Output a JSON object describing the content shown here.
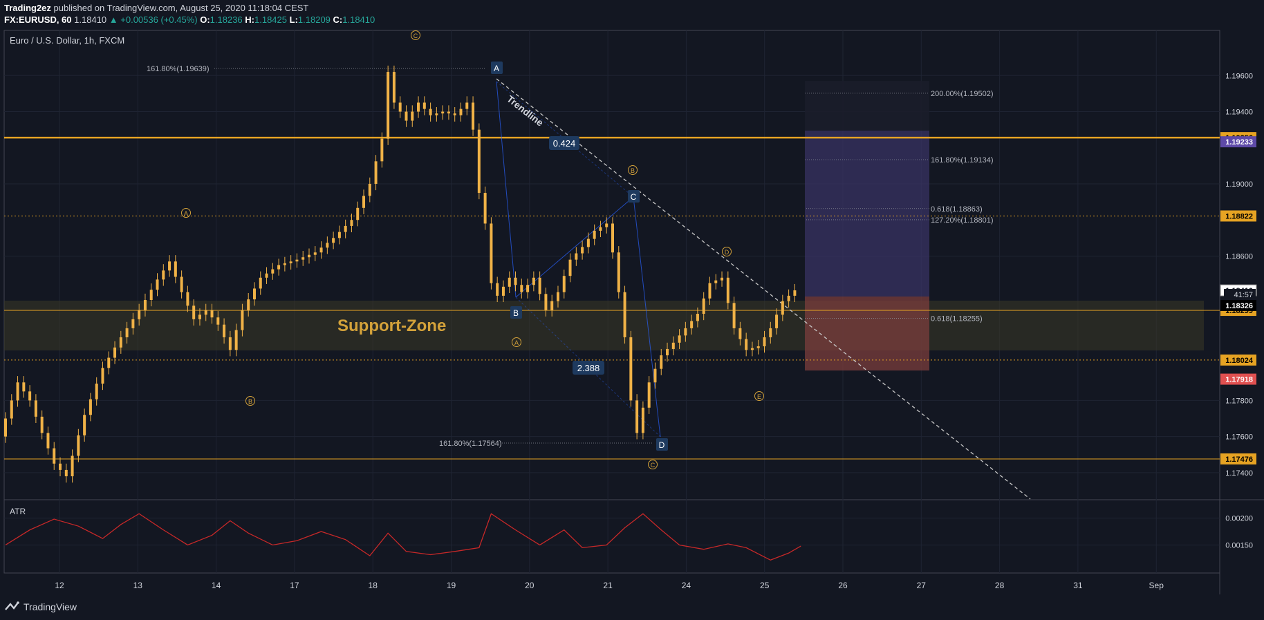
{
  "header": {
    "publisher": "Trading2ez",
    "published_text": " published on TradingView.com, August 25, 2020 11:18:04 CEST",
    "symbol": "FX:EURUSD, 60",
    "last": "1.18410",
    "change": "▲ +0.00536 (+0.45%)",
    "o_label": "O:",
    "o": "1.18236",
    "h_label": "H:",
    "h": "1.18425",
    "l_label": "L:",
    "l": "1.18209",
    "c_label": "C:",
    "c": "1.18410"
  },
  "chart_title": "Euro / U.S. Dollar, 1h, FXCM",
  "indicator_label": "ATR",
  "footer": {
    "brand": "TradingView"
  },
  "colors": {
    "background": "#131722",
    "candle": "#f0b247",
    "horizontal_line": "#e6a323",
    "trendline": "#c8c8c8",
    "pattern_line": "#2962ff",
    "target_zone": "#5b4a8c",
    "stop_zone": "#c0504d",
    "support_zone": "#4a4428",
    "atr": "#c62828",
    "label_box": "#1e3a5f"
  },
  "chart_data": {
    "type": "line",
    "x_ticks": [
      "12",
      "13",
      "14",
      "17",
      "18",
      "19",
      "20",
      "21",
      "24",
      "25",
      "26",
      "27",
      "28",
      "31",
      "Sep"
    ],
    "y_ticks": [
      "1.19600",
      "1.19400",
      "1.19000",
      "1.18600",
      "1.17800",
      "1.17600",
      "1.17400"
    ],
    "ylim": [
      1.1725,
      1.1985
    ],
    "price_path": [
      [
        0,
        1.176
      ],
      [
        3,
        1.179
      ],
      [
        5,
        1.178
      ],
      [
        7,
        1.1762
      ],
      [
        9,
        1.1745
      ],
      [
        11,
        1.1738
      ],
      [
        14,
        1.1772
      ],
      [
        17,
        1.1798
      ],
      [
        20,
        1.1815
      ],
      [
        23,
        1.183
      ],
      [
        26,
        1.1847
      ],
      [
        28,
        1.1857
      ],
      [
        30,
        1.184
      ],
      [
        32,
        1.1825
      ],
      [
        34,
        1.183
      ],
      [
        36,
        1.1822
      ],
      [
        38,
        1.1808
      ],
      [
        40,
        1.183
      ],
      [
        43,
        1.1848
      ],
      [
        46,
        1.1855
      ],
      [
        49,
        1.1858
      ],
      [
        52,
        1.1862
      ],
      [
        55,
        1.187
      ],
      [
        58,
        1.188
      ],
      [
        61,
        1.19
      ],
      [
        63,
        1.1925
      ],
      [
        64,
        1.1962
      ],
      [
        65,
        1.1945
      ],
      [
        67,
        1.1935
      ],
      [
        69,
        1.1945
      ],
      [
        71,
        1.1938
      ],
      [
        73,
        1.194
      ],
      [
        75,
        1.1938
      ],
      [
        77,
        1.1945
      ],
      [
        78,
        1.193
      ],
      [
        79,
        1.1895
      ],
      [
        80,
        1.1878
      ],
      [
        81,
        1.1845
      ],
      [
        82,
        1.1838
      ],
      [
        84,
        1.1848
      ],
      [
        86,
        1.184
      ],
      [
        88,
        1.1848
      ],
      [
        90,
        1.183
      ],
      [
        92,
        1.184
      ],
      [
        94,
        1.1858
      ],
      [
        96,
        1.1865
      ],
      [
        98,
        1.1874
      ],
      [
        100,
        1.1878
      ],
      [
        101,
        1.1862
      ],
      [
        102,
        1.184
      ],
      [
        103,
        1.1815
      ],
      [
        104,
        1.178
      ],
      [
        105,
        1.1762
      ],
      [
        107,
        1.179
      ],
      [
        109,
        1.1805
      ],
      [
        111,
        1.1812
      ],
      [
        113,
        1.182
      ],
      [
        115,
        1.1828
      ],
      [
        117,
        1.1845
      ],
      [
        119,
        1.1848
      ],
      [
        121,
        1.182
      ],
      [
        123,
        1.1808
      ],
      [
        125,
        1.181
      ],
      [
        127,
        1.182
      ],
      [
        129,
        1.1835
      ],
      [
        131,
        1.1841
      ]
    ],
    "atr_ticks": [
      "0.00200",
      "0.00150"
    ],
    "atr_ylim": [
      0.00098,
      0.00225
    ],
    "atr_path": [
      [
        0,
        0.0015
      ],
      [
        4,
        0.00178
      ],
      [
        8,
        0.00198
      ],
      [
        12,
        0.00185
      ],
      [
        16,
        0.00162
      ],
      [
        19,
        0.00188
      ],
      [
        22,
        0.00208
      ],
      [
        26,
        0.00178
      ],
      [
        30,
        0.0015
      ],
      [
        34,
        0.00168
      ],
      [
        37,
        0.00195
      ],
      [
        40,
        0.00172
      ],
      [
        44,
        0.0015
      ],
      [
        48,
        0.00158
      ],
      [
        52,
        0.00175
      ],
      [
        56,
        0.0016
      ],
      [
        60,
        0.0013
      ],
      [
        63,
        0.00172
      ],
      [
        66,
        0.00138
      ],
      [
        70,
        0.00132
      ],
      [
        74,
        0.00138
      ],
      [
        78,
        0.00145
      ],
      [
        80,
        0.00208
      ],
      [
        84,
        0.00178
      ],
      [
        88,
        0.0015
      ],
      [
        92,
        0.00178
      ],
      [
        95,
        0.00145
      ],
      [
        99,
        0.0015
      ],
      [
        102,
        0.00182
      ],
      [
        105,
        0.00208
      ],
      [
        108,
        0.00178
      ],
      [
        111,
        0.0015
      ],
      [
        115,
        0.00142
      ],
      [
        119,
        0.00152
      ],
      [
        122,
        0.00145
      ],
      [
        126,
        0.00122
      ],
      [
        129,
        0.00135
      ],
      [
        131,
        0.00148
      ]
    ],
    "horizontal_levels": [
      {
        "price": 1.19256,
        "label": "1.19256",
        "style": "solid-thick"
      },
      {
        "price": 1.18822,
        "label": "1.18822",
        "style": "dotted"
      },
      {
        "price": 1.18299,
        "label": "1.18299",
        "style": "solid"
      },
      {
        "price": 1.18024,
        "label": "1.18024",
        "style": "dotted"
      },
      {
        "price": 1.17476,
        "label": "1.17476",
        "style": "solid"
      }
    ],
    "price_labels": [
      {
        "price": 1.19233,
        "label": "1.19233",
        "color": "#5e4aa8"
      },
      {
        "price": 1.1841,
        "label": "1.18410",
        "color": "#ffffff"
      },
      {
        "price": 1.18326,
        "label": "1.18326",
        "color": "#000000"
      },
      {
        "price": 1.17918,
        "label": "1.17918",
        "color": "#e05050"
      }
    ],
    "countdown": "41:57",
    "support_zone_label": "Support-Zone",
    "trendline_label": "Trendline",
    "fib_labels": [
      {
        "text": "161.80%(1.19639)",
        "price": 1.19639
      },
      {
        "text": "161.80%(1.17564)",
        "price": 1.17564
      },
      {
        "text": "200.00%(1.19502)",
        "price": 1.19502
      },
      {
        "text": "161.80%(1.19134)",
        "price": 1.19134
      },
      {
        "text": "0.618(1.18863)",
        "price": 1.18863
      },
      {
        "text": "127.20%(1.18801)",
        "price": 1.18801
      },
      {
        "text": "0.618(1.18255)",
        "price": 1.18255
      }
    ],
    "pattern_points": [
      {
        "name": "A",
        "price": 1.1948
      },
      {
        "name": "B",
        "price": 1.1832
      },
      {
        "name": "C",
        "price": 1.1882
      },
      {
        "name": "D",
        "price": 1.1755
      }
    ],
    "ratio_labels": [
      "0.424",
      "2.388"
    ],
    "wave_labels": [
      "C",
      "A",
      "B",
      "A",
      "B",
      "C",
      "D",
      "E"
    ]
  }
}
